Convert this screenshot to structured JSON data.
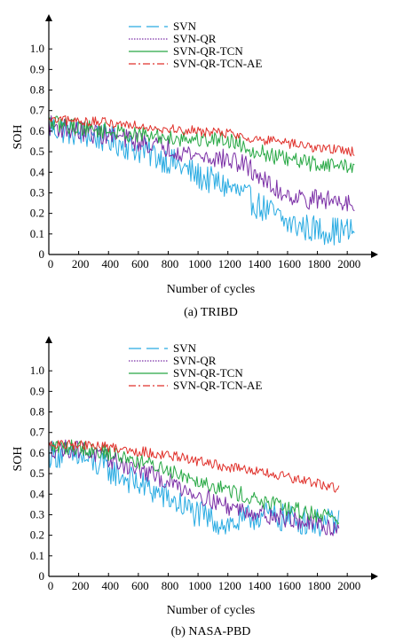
{
  "chart_data": [
    {
      "type": "line",
      "caption": "(a) TRIBD",
      "xlabel": "Number of cycles",
      "ylabel": "SOH",
      "xlim": [
        0,
        2100
      ],
      "ylim": [
        0,
        1.1
      ],
      "xticks": [
        0,
        200,
        400,
        600,
        800,
        1000,
        1200,
        1400,
        1600,
        1800,
        2000
      ],
      "yticks": [
        0,
        0.1,
        0.2,
        0.3,
        0.4,
        0.5,
        0.6,
        0.7,
        0.8,
        0.9,
        1.0
      ],
      "ytick_labels": [
        "0",
        "0.1",
        "0.2",
        "0.3",
        "0.4",
        "0.5",
        "0.6",
        "0.7",
        "0.8",
        "0.9",
        "1.0"
      ],
      "grid": false,
      "legend_position": "top",
      "series": [
        {
          "name": "SVN",
          "color": "#29abe2",
          "dash": "long-dash",
          "noise": 0.07,
          "x": [
            0,
            200,
            400,
            600,
            800,
            1000,
            1200,
            1300,
            1400,
            1500,
            1600,
            1800,
            2050
          ],
          "y": [
            0.62,
            0.59,
            0.56,
            0.51,
            0.46,
            0.38,
            0.33,
            0.29,
            0.24,
            0.2,
            0.15,
            0.12,
            0.11
          ]
        },
        {
          "name": "SVN-QR",
          "color": "#7b2fa6",
          "dash": "dotted",
          "noise": 0.05,
          "x": [
            0,
            200,
            400,
            600,
            800,
            1000,
            1200,
            1300,
            1400,
            1500,
            1700,
            2050
          ],
          "y": [
            0.63,
            0.6,
            0.58,
            0.55,
            0.52,
            0.48,
            0.46,
            0.44,
            0.39,
            0.32,
            0.27,
            0.26
          ]
        },
        {
          "name": "SVN-QR-TCN",
          "color": "#27a844",
          "dash": "solid",
          "noise": 0.04,
          "x": [
            0,
            200,
            400,
            600,
            800,
            1000,
            1200,
            1400,
            1600,
            1800,
            2050
          ],
          "y": [
            0.64,
            0.62,
            0.6,
            0.58,
            0.57,
            0.56,
            0.56,
            0.5,
            0.46,
            0.44,
            0.43
          ]
        },
        {
          "name": "SVN-QR-TCN-AE",
          "color": "#e0302a",
          "dash": "dash-dot",
          "noise": 0.025,
          "x": [
            0,
            200,
            400,
            600,
            800,
            1000,
            1200,
            1400,
            1600,
            1800,
            2050
          ],
          "y": [
            0.65,
            0.65,
            0.64,
            0.63,
            0.61,
            0.6,
            0.59,
            0.56,
            0.54,
            0.52,
            0.5
          ]
        }
      ]
    },
    {
      "type": "line",
      "caption": "(b) NASA-PBD",
      "xlabel": "Number of cycles",
      "ylabel": "SOH",
      "xlim": [
        0,
        2100
      ],
      "ylim": [
        0,
        1.1
      ],
      "xticks": [
        0,
        200,
        400,
        600,
        800,
        1000,
        1200,
        1400,
        1600,
        1800,
        2000
      ],
      "yticks": [
        0,
        0.1,
        0.2,
        0.3,
        0.4,
        0.5,
        0.6,
        0.7,
        0.8,
        0.9,
        1.0
      ],
      "ytick_labels": [
        "0",
        "0.1",
        "0.2",
        "0.3",
        "0.4",
        "0.5",
        "0.6",
        "0.7",
        "0.8",
        "0.9",
        "1.0"
      ],
      "grid": false,
      "legend_position": "top",
      "series": [
        {
          "name": "SVN",
          "color": "#29abe2",
          "dash": "long-dash",
          "noise": 0.07,
          "x": [
            0,
            200,
            400,
            600,
            800,
            1000,
            1200,
            1300,
            1400,
            1600,
            1800,
            1950
          ],
          "y": [
            0.6,
            0.58,
            0.52,
            0.45,
            0.38,
            0.3,
            0.25,
            0.27,
            0.3,
            0.28,
            0.26,
            0.26
          ]
        },
        {
          "name": "SVN-QR",
          "color": "#7b2fa6",
          "dash": "dotted",
          "noise": 0.045,
          "x": [
            0,
            200,
            400,
            600,
            800,
            1000,
            1200,
            1400,
            1600,
            1800,
            1950
          ],
          "y": [
            0.62,
            0.62,
            0.57,
            0.52,
            0.46,
            0.4,
            0.34,
            0.31,
            0.28,
            0.25,
            0.23
          ]
        },
        {
          "name": "SVN-QR-TCN",
          "color": "#27a844",
          "dash": "solid",
          "noise": 0.04,
          "x": [
            0,
            200,
            400,
            600,
            800,
            1000,
            1200,
            1400,
            1600,
            1800,
            1950
          ],
          "y": [
            0.63,
            0.63,
            0.6,
            0.56,
            0.52,
            0.47,
            0.42,
            0.37,
            0.33,
            0.3,
            0.29
          ]
        },
        {
          "name": "SVN-QR-TCN-AE",
          "color": "#e0302a",
          "dash": "dash-dot",
          "noise": 0.025,
          "x": [
            0,
            200,
            400,
            600,
            800,
            1000,
            1200,
            1400,
            1600,
            1800,
            1950
          ],
          "y": [
            0.64,
            0.64,
            0.63,
            0.61,
            0.59,
            0.56,
            0.53,
            0.51,
            0.48,
            0.45,
            0.43
          ]
        }
      ]
    }
  ]
}
